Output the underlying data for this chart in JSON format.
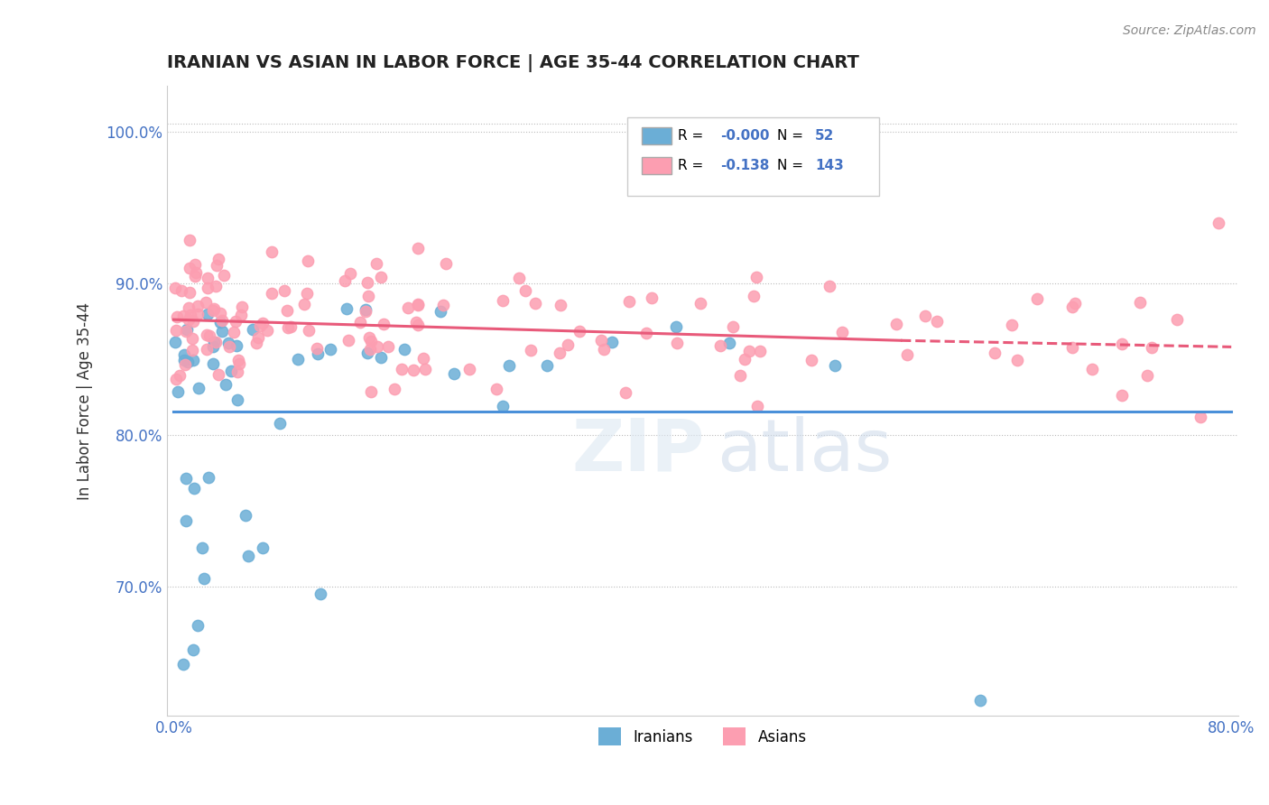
{
  "title": "IRANIAN VS ASIAN IN LABOR FORCE | AGE 35-44 CORRELATION CHART",
  "source_text": "Source: ZipAtlas.com",
  "ylabel": "In Labor Force | Age 35-44",
  "xlim": [
    -0.005,
    0.805
  ],
  "ylim": [
    0.615,
    1.03
  ],
  "ytick_labels": [
    "70.0%",
    "80.0%",
    "90.0%",
    "100.0%"
  ],
  "ytick_positions": [
    0.7,
    0.8,
    0.9,
    1.0
  ],
  "xtick_labels": [
    "0.0%",
    "80.0%"
  ],
  "xtick_positions": [
    0.0,
    0.8
  ],
  "iranian_color": "#6baed6",
  "asian_color": "#fc9eb1",
  "iranian_line_color": "#4a90d9",
  "asian_line_color": "#e85a7a",
  "legend_r_iranian": "-0.000",
  "legend_n_iranian": "52",
  "legend_r_asian": "-0.138",
  "legend_n_asian": "143",
  "iranians_label": "Iranians",
  "asians_label": "Asians"
}
